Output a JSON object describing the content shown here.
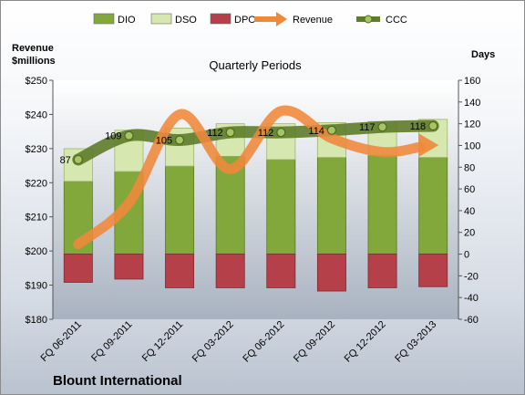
{
  "chart_data": {
    "type": "bar",
    "title": "Quarterly Periods",
    "company": "Blount International",
    "left_axis_label_line1": "Revenue",
    "left_axis_label_line2": "$millions",
    "right_axis_label": "Days",
    "categories": [
      "FQ 06-2011",
      "FQ 09-2011",
      "FQ 12-2011",
      "FQ 03-2012",
      "FQ 06-2012",
      "FQ 09-2012",
      "FQ 12-2012",
      "FQ 03-2013"
    ],
    "left_ylim": [
      180,
      250
    ],
    "left_ticks": [
      180,
      190,
      200,
      210,
      220,
      230,
      240,
      250
    ],
    "left_tick_labels": [
      "$180",
      "$190",
      "$200",
      "$210",
      "$220",
      "$230",
      "$240",
      "$250"
    ],
    "right_ylim": [
      -60,
      160
    ],
    "right_ticks": [
      -60,
      -40,
      -20,
      0,
      20,
      40,
      60,
      80,
      100,
      120,
      140,
      160
    ],
    "legend_position": "top",
    "grid": false,
    "series": [
      {
        "name": "DIO",
        "kind": "stacked-bar",
        "axis": "right",
        "color": "#82a83c",
        "values": [
          67,
          76,
          81,
          90,
          87,
          89,
          91,
          89
        ]
      },
      {
        "name": "DSO",
        "kind": "stacked-bar",
        "axis": "right",
        "color": "#d6e7b0",
        "values": [
          30,
          38,
          35,
          30,
          33,
          32,
          31,
          35
        ]
      },
      {
        "name": "DPO",
        "kind": "negative-bar",
        "axis": "right",
        "color": "#b5404a",
        "values": [
          -26,
          -23,
          -31,
          -31,
          -31,
          -34,
          -31,
          -30
        ]
      },
      {
        "name": "Revenue",
        "kind": "line",
        "axis": "left",
        "color": "#f0883a",
        "values": [
          202,
          214,
          240,
          224,
          241,
          233,
          229,
          231
        ]
      },
      {
        "name": "CCC",
        "kind": "line",
        "axis": "right",
        "color": "#5e7c2a",
        "values": [
          87,
          109,
          105,
          112,
          112,
          114,
          117,
          118
        ],
        "labels": [
          "87",
          "109",
          "105",
          "112",
          "112",
          "114",
          "117",
          "118"
        ]
      }
    ]
  }
}
